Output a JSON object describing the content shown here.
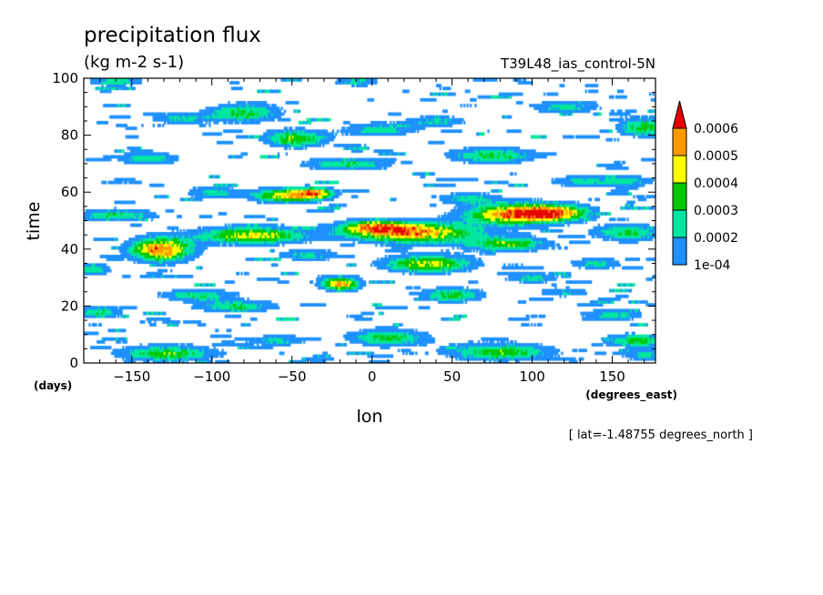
{
  "chart_data": {
    "type": "heatmap",
    "title": "precipitation flux",
    "subtitle": "(kg m-2 s-1)",
    "run_label": "T39L48_ias_control-5N",
    "xlabel": "lon",
    "x_units": "(degrees_east)",
    "ylabel": "time",
    "y_units": "(days)",
    "footnote": "[ lat=-1.48755 degrees_north ]",
    "xlim": [
      -180,
      177
    ],
    "ylim": [
      0,
      100
    ],
    "x_ticks": [
      -150,
      -100,
      -50,
      0,
      50,
      100,
      150
    ],
    "y_ticks": [
      0,
      20,
      40,
      60,
      80,
      100
    ],
    "grid": false,
    "legend_position": "right",
    "colorbar": {
      "levels": [
        "1e-04",
        "0.0002",
        "0.0003",
        "0.0004",
        "0.0005",
        "0.0006"
      ],
      "colors": [
        "#1e90ff",
        "#00e6a0",
        "#00c800",
        "#ffff00",
        "#ff9900",
        "#e60000"
      ],
      "extend": "max"
    },
    "storms": [
      {
        "lon": -132,
        "t": 40,
        "peak": 5.8,
        "wlon": 14,
        "wt": 3.0
      },
      {
        "lon": 25,
        "t": 46,
        "peak": 5.6,
        "wlon": 28,
        "wt": 2.6
      },
      {
        "lon": 90,
        "t": 52.5,
        "peak": 5.7,
        "wlon": 22,
        "wt": 2.6
      },
      {
        "lon": -20,
        "t": 28,
        "peak": 5.2,
        "wlon": 9,
        "wt": 1.8
      },
      {
        "lon": -52,
        "t": 59,
        "peak": 4.9,
        "wlon": 16,
        "wt": 1.8
      },
      {
        "lon": -35,
        "t": 60,
        "peak": 4.0,
        "wlon": 8,
        "wt": 1.2
      },
      {
        "lon": -75,
        "t": 45,
        "peak": 4.6,
        "wlon": 24,
        "wt": 2.2
      },
      {
        "lon": -48,
        "t": 79,
        "peak": 3.9,
        "wlon": 14,
        "wt": 2.2
      },
      {
        "lon": 35,
        "t": 35,
        "peak": 4.4,
        "wlon": 20,
        "wt": 2.2
      },
      {
        "lon": 85,
        "t": 42,
        "peak": 3.7,
        "wlon": 18,
        "wt": 1.8
      },
      {
        "lon": -128,
        "t": 3.5,
        "peak": 3.6,
        "wlon": 22,
        "wt": 2.0
      },
      {
        "lon": 80,
        "t": 4,
        "peak": 3.6,
        "wlon": 24,
        "wt": 2.2
      },
      {
        "lon": 10,
        "t": 9,
        "peak": 3.4,
        "wlon": 18,
        "wt": 2.0
      },
      {
        "lon": 165,
        "t": 8,
        "peak": 3.4,
        "wlon": 14,
        "wt": 1.6
      },
      {
        "lon": -80,
        "t": 88,
        "peak": 3.3,
        "wlon": 16,
        "wt": 2.4
      },
      {
        "lon": -85,
        "t": 20,
        "peak": 3.0,
        "wlon": 18,
        "wt": 1.6
      },
      {
        "lon": 170,
        "t": 83,
        "peak": 3.4,
        "wlon": 12,
        "wt": 2.4
      },
      {
        "lon": 75,
        "t": 73,
        "peak": 3.2,
        "wlon": 20,
        "wt": 2.0
      },
      {
        "lon": 160,
        "t": 46,
        "peak": 3.2,
        "wlon": 16,
        "wt": 2.0
      },
      {
        "lon": -160,
        "t": 52,
        "peak": 3.0,
        "wlon": 18,
        "wt": 1.6
      },
      {
        "lon": 115,
        "t": 53,
        "peak": 3.6,
        "wlon": 16,
        "wt": 2.0
      },
      {
        "lon": -15,
        "t": 70,
        "peak": 2.9,
        "wlon": 20,
        "wt": 1.6
      },
      {
        "lon": 50,
        "t": 24,
        "peak": 3.3,
        "wlon": 14,
        "wt": 1.8
      },
      {
        "lon": 0,
        "t": 48,
        "peak": 3.5,
        "wlon": 14,
        "wt": 1.6
      },
      {
        "lon": -110,
        "t": 24,
        "peak": 2.9,
        "wlon": 16,
        "wt": 1.4
      },
      {
        "lon": -140,
        "t": 72,
        "peak": 2.7,
        "wlon": 14,
        "wt": 1.6
      },
      {
        "lon": -170,
        "t": 18,
        "peak": 2.9,
        "wlon": 10,
        "wt": 1.6
      },
      {
        "lon": -175,
        "t": 33,
        "peak": 2.8,
        "wlon": 8,
        "wt": 1.6
      },
      {
        "lon": 150,
        "t": 17,
        "peak": 2.5,
        "wlon": 14,
        "wt": 1.4
      },
      {
        "lon": 5,
        "t": 82,
        "peak": 2.7,
        "wlon": 16,
        "wt": 1.6
      },
      {
        "lon": 120,
        "t": 90,
        "peak": 2.5,
        "wlon": 16,
        "wt": 1.6
      },
      {
        "lon": -160,
        "t": 99,
        "peak": 2.7,
        "wlon": 12,
        "wt": 1.2
      },
      {
        "lon": 40,
        "t": 85,
        "peak": 2.3,
        "wlon": 14,
        "wt": 1.4
      },
      {
        "lon": -100,
        "t": 60,
        "peak": 2.4,
        "wlon": 12,
        "wt": 1.6
      },
      {
        "lon": 130,
        "t": 64,
        "peak": 2.3,
        "wlon": 14,
        "wt": 1.4
      },
      {
        "lon": 100,
        "t": 30,
        "peak": 2.4,
        "wlon": 12,
        "wt": 1.4
      },
      {
        "lon": -40,
        "t": 38,
        "peak": 2.4,
        "wlon": 14,
        "wt": 1.4
      },
      {
        "lon": 170,
        "t": 3,
        "peak": 2.5,
        "wlon": 10,
        "wt": 1.4
      },
      {
        "lon": -60,
        "t": 8,
        "peak": 2.3,
        "wlon": 14,
        "wt": 1.4
      },
      {
        "lon": 140,
        "t": 35,
        "peak": 2.4,
        "wlon": 12,
        "wt": 1.4
      },
      {
        "lon": -120,
        "t": 86,
        "peak": 2.2,
        "wlon": 14,
        "wt": 1.4
      },
      {
        "lon": 60,
        "t": 58,
        "peak": 2.3,
        "wlon": 14,
        "wt": 1.4
      },
      {
        "lon": -10,
        "t": 99,
        "peak": 2.4,
        "wlon": 10,
        "wt": 1.2
      },
      {
        "lon": 160,
        "t": 64,
        "peak": 2.3,
        "wlon": 12,
        "wt": 1.4
      },
      {
        "lon": 120,
        "t": 25,
        "peak": 2.1,
        "wlon": 12,
        "wt": 1.2
      }
    ]
  }
}
